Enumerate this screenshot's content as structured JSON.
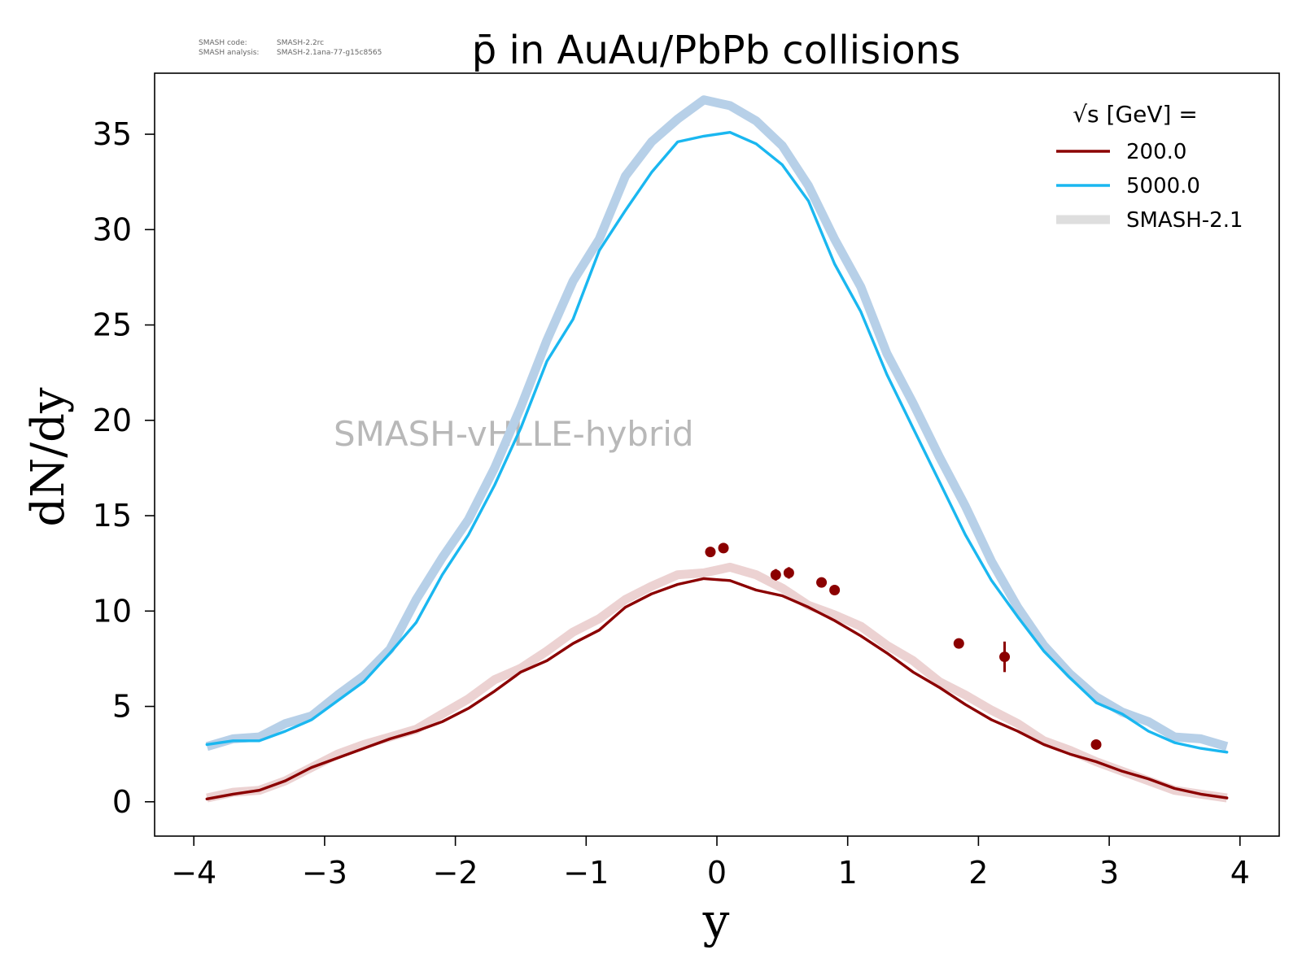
{
  "meta": {
    "code_label": "SMASH code:",
    "code_value": "SMASH-2.2rc",
    "analysis_label": "SMASH analysis:",
    "analysis_value": "SMASH-2.1ana-77-g15c8565"
  },
  "chart_data": {
    "type": "line",
    "title": "p̄ in AuAu/PbPb collisions",
    "xlabel": "y",
    "ylabel": "dN/dy",
    "xlim": [
      -4.3,
      4.3
    ],
    "ylim": [
      -1.8,
      38.2
    ],
    "xticks": [
      -4,
      -3,
      -2,
      -1,
      0,
      1,
      2,
      3,
      4
    ],
    "xtick_labels": [
      "−4",
      "−3",
      "−2",
      "−1",
      "0",
      "1",
      "2",
      "3",
      "4"
    ],
    "yticks": [
      0,
      5,
      10,
      15,
      20,
      25,
      30,
      35
    ],
    "ytick_labels": [
      "0",
      "5",
      "10",
      "15",
      "20",
      "25",
      "30",
      "35"
    ],
    "grid": false,
    "legend_placement": "top-right",
    "legend_title": "√s  [GeV] =",
    "annotation": "SMASH-vHLLE-hybrid",
    "x": [
      -3.9,
      -3.7,
      -3.5,
      -3.3,
      -3.1,
      -2.9,
      -2.7,
      -2.5,
      -2.3,
      -2.1,
      -1.9,
      -1.7,
      -1.5,
      -1.3,
      -1.1,
      -0.9,
      -0.7,
      -0.5,
      -0.3,
      -0.1,
      0.1,
      0.3,
      0.5,
      0.7,
      0.9,
      1.1,
      1.3,
      1.5,
      1.7,
      1.9,
      2.1,
      2.3,
      2.5,
      2.7,
      2.9,
      3.1,
      3.3,
      3.5,
      3.7,
      3.9
    ],
    "series": [
      {
        "name": "5000.0",
        "kind": "reference",
        "color": "#b7d0e8",
        "values": [
          2.9,
          3.3,
          3.4,
          4.1,
          4.5,
          5.6,
          6.6,
          8.0,
          10.6,
          12.8,
          14.8,
          17.5,
          20.7,
          24.2,
          27.3,
          29.5,
          32.8,
          34.6,
          35.8,
          36.8,
          36.5,
          35.7,
          34.4,
          32.3,
          29.5,
          27.0,
          23.5,
          20.9,
          18.1,
          15.5,
          12.6,
          10.2,
          8.2,
          6.7,
          5.5,
          4.7,
          4.2,
          3.4,
          3.3,
          2.9
        ]
      },
      {
        "name": "200.0",
        "kind": "reference",
        "color": "#ecd2d2",
        "values": [
          0.2,
          0.5,
          0.6,
          1.1,
          1.8,
          2.5,
          3.0,
          3.4,
          3.8,
          4.6,
          5.4,
          6.4,
          7.0,
          7.9,
          8.9,
          9.6,
          10.6,
          11.3,
          11.9,
          12.0,
          12.3,
          11.9,
          11.2,
          10.3,
          9.8,
          9.2,
          8.2,
          7.4,
          6.3,
          5.6,
          4.8,
          4.1,
          3.2,
          2.7,
          2.1,
          1.6,
          1.1,
          0.6,
          0.4,
          0.2
        ]
      },
      {
        "name": "5000.0",
        "kind": "line",
        "color": "#1ab7f0",
        "values": [
          3.0,
          3.2,
          3.2,
          3.7,
          4.3,
          5.3,
          6.3,
          7.8,
          9.4,
          11.9,
          14.0,
          16.6,
          19.6,
          23.1,
          25.3,
          28.9,
          31.0,
          33.0,
          34.6,
          34.9,
          35.1,
          34.5,
          33.4,
          31.5,
          28.2,
          25.7,
          22.4,
          19.6,
          16.8,
          14.0,
          11.6,
          9.7,
          7.9,
          6.5,
          5.2,
          4.6,
          3.7,
          3.1,
          2.8,
          2.6
        ]
      },
      {
        "name": "200.0",
        "kind": "line",
        "color": "#8b0000",
        "values": [
          0.15,
          0.4,
          0.6,
          1.1,
          1.8,
          2.3,
          2.8,
          3.3,
          3.7,
          4.2,
          4.9,
          5.8,
          6.8,
          7.4,
          8.3,
          9.0,
          10.2,
          10.9,
          11.4,
          11.7,
          11.6,
          11.1,
          10.8,
          10.2,
          9.5,
          8.7,
          7.8,
          6.8,
          6.0,
          5.1,
          4.3,
          3.7,
          3.0,
          2.5,
          2.1,
          1.6,
          1.2,
          0.7,
          0.4,
          0.2
        ]
      }
    ],
    "points": {
      "name": "200.0",
      "color": "#8b0000",
      "x": [
        -0.05,
        0.05,
        0.45,
        0.55,
        0.8,
        0.9,
        1.85,
        2.2,
        2.9
      ],
      "y": [
        13.1,
        13.3,
        11.9,
        12.0,
        11.5,
        11.1,
        8.3,
        7.6,
        3.0
      ],
      "yerr": [
        0.2,
        0.2,
        0.3,
        0.3,
        0.2,
        0.2,
        0.25,
        0.8,
        0.1
      ]
    },
    "legend": [
      {
        "label": "200.0",
        "color": "#8b0000",
        "style": "thin"
      },
      {
        "label": "5000.0",
        "color": "#1ab7f0",
        "style": "thin"
      },
      {
        "label": "SMASH-2.1",
        "color": "#dedede",
        "style": "thick"
      }
    ]
  }
}
